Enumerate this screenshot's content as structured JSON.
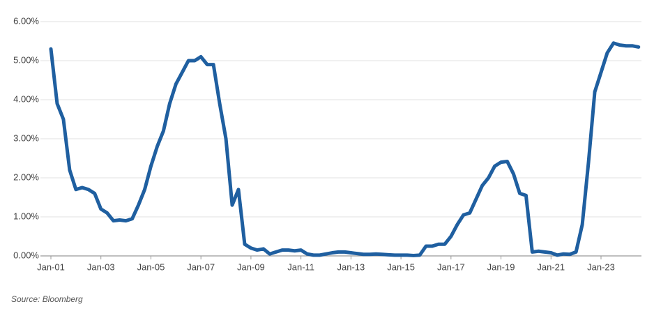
{
  "chart_data": {
    "type": "line",
    "source": "Source: Bloomberg",
    "categories": [
      "Jan-01",
      null,
      null,
      null,
      null,
      null,
      null,
      null,
      "Jan-03",
      null,
      null,
      null,
      null,
      null,
      null,
      null,
      "Jan-05",
      null,
      null,
      null,
      null,
      null,
      null,
      null,
      "Jan-07",
      null,
      null,
      null,
      null,
      null,
      null,
      null,
      "Jan-09",
      null,
      null,
      null,
      null,
      null,
      null,
      null,
      "Jan-11",
      null,
      null,
      null,
      null,
      null,
      null,
      null,
      "Jan-13",
      null,
      null,
      null,
      null,
      null,
      null,
      null,
      "Jan-15",
      null,
      null,
      null,
      null,
      null,
      null,
      null,
      "Jan-17",
      null,
      null,
      null,
      null,
      null,
      null,
      null,
      "Jan-19",
      null,
      null,
      null,
      null,
      null,
      null,
      null,
      "Jan-21",
      null,
      null,
      null,
      null,
      null,
      null,
      null,
      "Jan-23",
      null,
      null,
      null,
      null,
      null,
      null
    ],
    "values": [
      5.3,
      3.9,
      3.5,
      2.2,
      1.7,
      1.75,
      1.7,
      1.6,
      1.2,
      1.1,
      0.9,
      0.92,
      0.9,
      0.95,
      1.3,
      1.7,
      2.3,
      2.8,
      3.2,
      3.9,
      4.4,
      4.7,
      5.0,
      5.0,
      5.1,
      4.9,
      4.9,
      3.9,
      3.0,
      1.3,
      1.7,
      0.3,
      0.2,
      0.15,
      0.18,
      0.05,
      0.1,
      0.15,
      0.15,
      0.13,
      0.15,
      0.05,
      0.02,
      0.02,
      0.05,
      0.08,
      0.1,
      0.1,
      0.08,
      0.06,
      0.04,
      0.04,
      0.05,
      0.04,
      0.03,
      0.02,
      0.02,
      0.02,
      0.01,
      0.02,
      0.25,
      0.25,
      0.3,
      0.3,
      0.5,
      0.8,
      1.05,
      1.1,
      1.45,
      1.8,
      2.0,
      2.3,
      2.4,
      2.42,
      2.1,
      1.6,
      1.55,
      0.1,
      0.12,
      0.1,
      0.08,
      0.02,
      0.05,
      0.04,
      0.1,
      0.8,
      2.4,
      4.2,
      4.7,
      5.2,
      5.45,
      5.4,
      5.38,
      5.38,
      5.35
    ],
    "color": "#1f5fa0",
    "ylim": [
      0,
      6
    ],
    "yticks": [
      {
        "value": 0,
        "label": "0.00%"
      },
      {
        "value": 1,
        "label": "1.00%"
      },
      {
        "value": 2,
        "label": "2.00%"
      },
      {
        "value": 3,
        "label": "3.00%"
      },
      {
        "value": 4,
        "label": "4.00%"
      },
      {
        "value": 5,
        "label": "5.00%"
      },
      {
        "value": 6,
        "label": "6.00%"
      }
    ],
    "grid": true
  }
}
